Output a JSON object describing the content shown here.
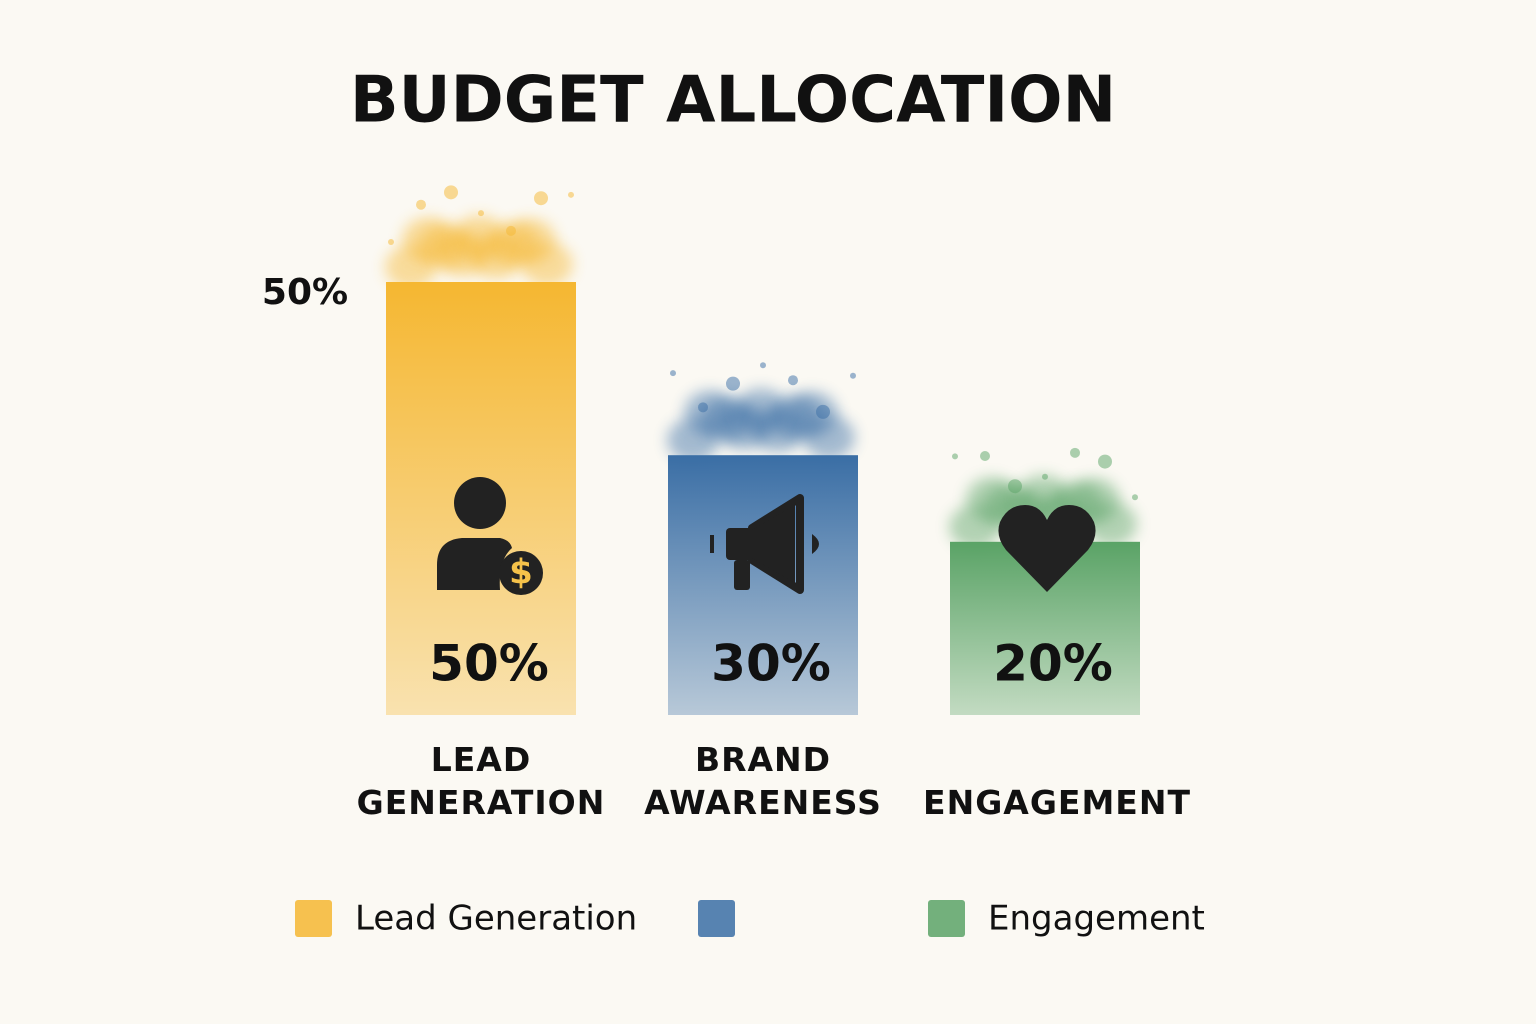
{
  "chart_data": {
    "type": "bar",
    "title": "BUDGET ALLOCATION",
    "categories": [
      "LEAD GENERATION",
      "BRAND AWARENESS",
      "ENGAGEMENT"
    ],
    "values": [
      50,
      30,
      20
    ],
    "value_labels": [
      "50%",
      "30%",
      "20%"
    ],
    "colors": [
      "#f5b731",
      "#3a6ea5",
      "#5aa366"
    ],
    "ylim": [
      0,
      50
    ],
    "yticks": [
      {
        "value": 50,
        "label": "50%"
      }
    ],
    "legend_labels": [
      "Lead Generation",
      null,
      "Engagement"
    ]
  }
}
